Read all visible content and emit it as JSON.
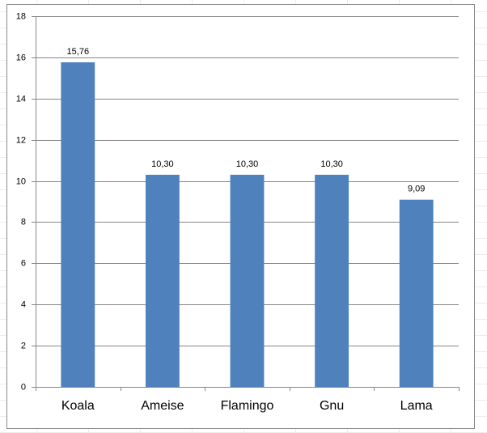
{
  "chart_data": {
    "type": "bar",
    "categories": [
      "Koala",
      "Ameise",
      "Flamingo",
      "Gnu",
      "Lama"
    ],
    "values": [
      15.76,
      10.3,
      10.3,
      10.3,
      9.09
    ],
    "value_labels": [
      "15,76",
      "10,30",
      "10,30",
      "10,30",
      "9,09"
    ],
    "color": "#4f81bd",
    "ylim": [
      0,
      18
    ],
    "yticks": [
      0,
      2,
      4,
      6,
      8,
      10,
      12,
      14,
      16,
      18
    ],
    "grid": true
  }
}
